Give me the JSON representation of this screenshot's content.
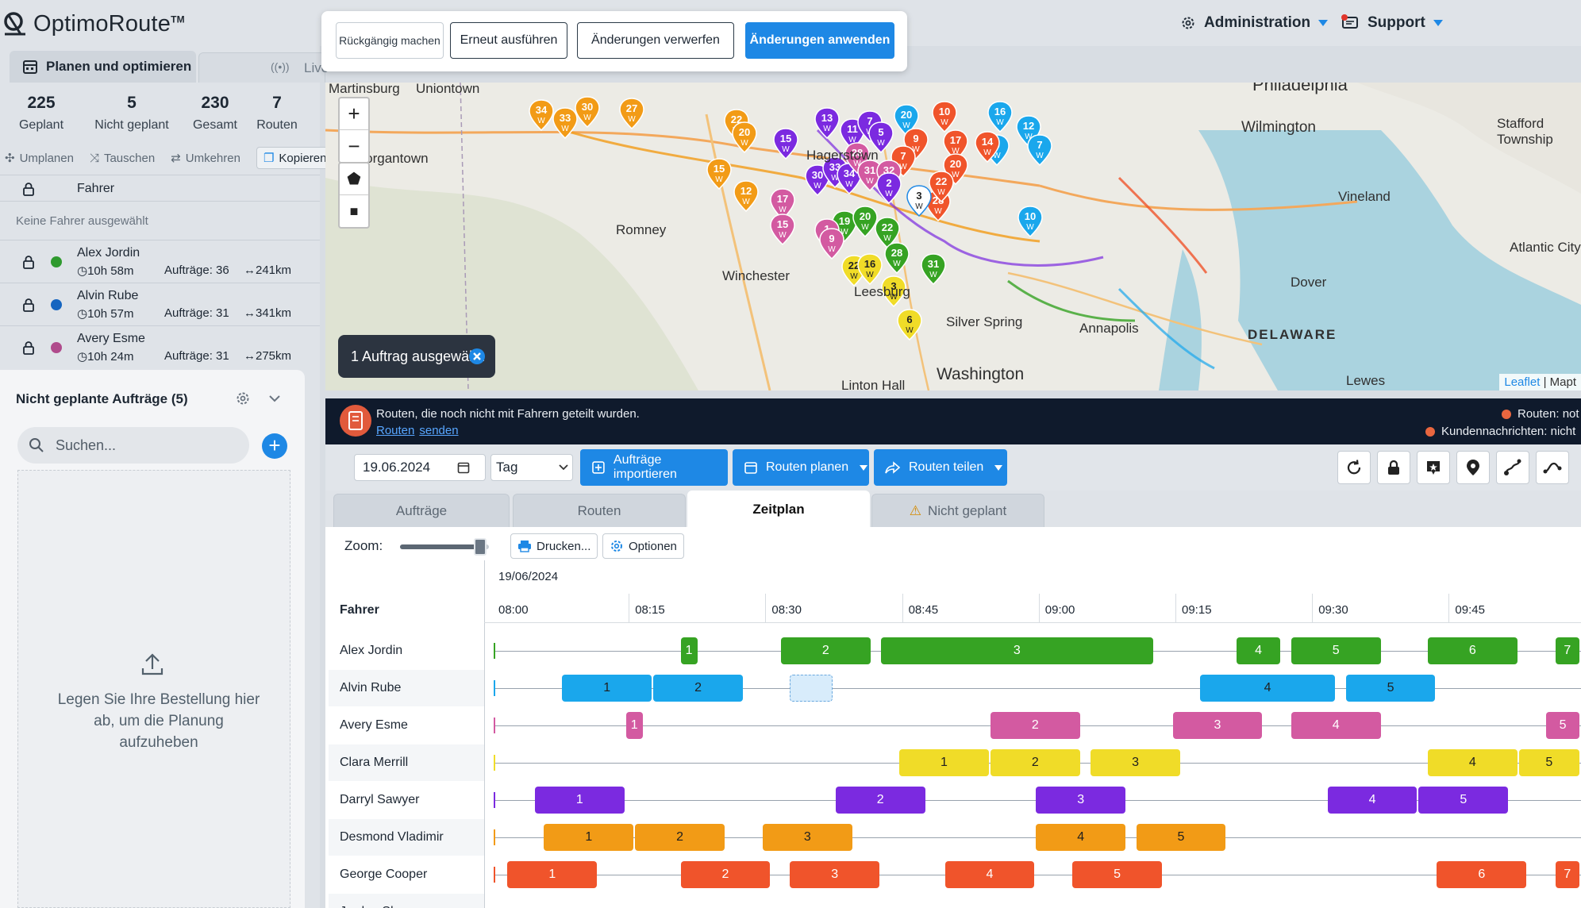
{
  "brand": {
    "name": "OptimoRoute",
    "tm": "TM"
  },
  "nav": {
    "tab_plan": "Planen und optimieren",
    "tab_live": "Live"
  },
  "stats": [
    {
      "num": "225",
      "label": "Geplant"
    },
    {
      "num": "5",
      "label": "Nicht geplant"
    },
    {
      "num": "230",
      "label": "Gesamt"
    },
    {
      "num": "7",
      "label": "Routen"
    }
  ],
  "actions": {
    "replan": "Umplanen",
    "swap": "Tauschen",
    "reverse": "Umkehren",
    "copy": "Kopieren"
  },
  "drivers_panel": {
    "header": "Fahrer",
    "empty": "Keine Fahrer ausgewählt"
  },
  "drivers": [
    {
      "name": "Alex Jordin",
      "time": "10h 58m",
      "orders": "Aufträge: 36",
      "dist": "241km",
      "color": "#2f9a2f"
    },
    {
      "name": "Alvin Rube",
      "time": "10h 57m",
      "orders": "Aufträge: 31",
      "dist": "341km",
      "color": "#1565c0"
    },
    {
      "name": "Avery Esme",
      "time": "10h 24m",
      "orders": "Aufträge: 31",
      "dist": "275km",
      "color": "#b04b8c"
    }
  ],
  "unplanned": {
    "title": "Nicht geplante Aufträge (5)",
    "search_placeholder": "Suchen...",
    "drop_text": "Legen Sie Ihre Bestellung hier ab, um die Planung aufzuheben"
  },
  "topnav": {
    "admin": "Administration",
    "support": "Support"
  },
  "popup": {
    "undo": "Rückgängig machen",
    "redo": "Erneut ausführen",
    "discard": "Änderungen verwerfen",
    "apply": "Änderungen anwenden"
  },
  "map": {
    "selected": "1 Auftrag ausgewählt",
    "attribution_leaflet": "Leaflet",
    "attribution_rest": " | Mapt",
    "labels": [
      "Martinsburg",
      "Uniontown",
      "Philadelphia",
      "Wilmington",
      "Stafford Township",
      "Morgantown",
      "Hagerstown",
      "Vineland",
      "Romney",
      "Winchester",
      "Atlantic City",
      "Dover",
      "Leesburg",
      "DELAWARE",
      "Silver Spring",
      "Annapolis",
      "Washington",
      "Linton Hall",
      "Lewes"
    ]
  },
  "notification": {
    "text": "Routen, die noch nicht mit Fahrern geteilt wurden.",
    "link1": "Routen",
    "link2": "senden",
    "right1": "Routen: not",
    "right2": "Kundennachrichten: nicht"
  },
  "toolbar": {
    "date": "19.06.2024",
    "view": "Tag",
    "import": "Aufträge importieren",
    "plan": "Routen planen",
    "share": "Routen teilen"
  },
  "tabs": {
    "orders": "Aufträge",
    "routes": "Routen",
    "schedule": "Zeitplan",
    "unplanned": "Nicht geplant"
  },
  "schedule": {
    "zoom_label": "Zoom:",
    "zoom_value": 0.9,
    "print": "Drucken...",
    "options": "Optionen",
    "date": "19/06/2024",
    "driver_col": "Fahrer",
    "ticks": [
      "08:00",
      "08:15",
      "08:30",
      "08:45",
      "09:00",
      "09:15",
      "09:30",
      "09:45"
    ],
    "rows": [
      {
        "name": "Alex Jordin",
        "color": "#36a323",
        "light": true
      },
      {
        "name": "Alvin Rube",
        "color": "#1aa7ec",
        "light": false
      },
      {
        "name": "Avery Esme",
        "color": "#d35aa1",
        "light": true
      },
      {
        "name": "Clara Merrill",
        "color": "#f0dc28",
        "light": false
      },
      {
        "name": "Darryl Sawyer",
        "color": "#7b2ae0",
        "light": true
      },
      {
        "name": "Desmond Vladimir",
        "color": "#f29b16",
        "light": false
      },
      {
        "name": "George Cooper",
        "color": "#f0542b",
        "light": true
      },
      {
        "name": "Jordan Shaw",
        "color": "#2c7be5",
        "light": true
      }
    ],
    "blocks": [
      [
        [
          "1",
          "08:20",
          "08:22"
        ],
        [
          "2",
          "08:31",
          "08:41"
        ],
        [
          "3",
          "08:42",
          "09:12"
        ],
        [
          "4",
          "09:21",
          "09:26"
        ],
        [
          "5",
          "09:27",
          "09:37"
        ],
        [
          "6",
          "09:42",
          "09:52"
        ],
        [
          "7",
          "09:56",
          "10:06"
        ]
      ],
      [
        [
          "1",
          "08:07",
          "08:17"
        ],
        [
          "2",
          "08:17",
          "08:27"
        ],
        [
          "4",
          "09:17",
          "09:32"
        ],
        [
          "5",
          "09:33",
          "09:43"
        ]
      ],
      [
        [
          "1",
          "08:14",
          "08:16"
        ],
        [
          "2",
          "08:54",
          "09:04"
        ],
        [
          "3",
          "09:14",
          "09:24"
        ],
        [
          "4",
          "09:27",
          "09:37"
        ],
        [
          "5",
          "09:55",
          "10:05"
        ]
      ],
      [
        [
          "1",
          "08:44",
          "08:54"
        ],
        [
          "2",
          "08:54",
          "09:04"
        ],
        [
          "3",
          "09:05",
          "09:15"
        ],
        [
          "4",
          "09:42",
          "09:52"
        ],
        [
          "5",
          "09:52",
          "10:02"
        ]
      ],
      [
        [
          "1",
          "08:04",
          "08:14"
        ],
        [
          "2",
          "08:37",
          "08:47"
        ],
        [
          "3",
          "08:59",
          "09:09"
        ],
        [
          "4",
          "09:31",
          "09:41"
        ],
        [
          "5",
          "09:41",
          "09:51"
        ]
      ],
      [
        [
          "1",
          "08:05",
          "08:15"
        ],
        [
          "2",
          "08:15",
          "08:25"
        ],
        [
          "3",
          "08:29",
          "08:39"
        ],
        [
          "4",
          "08:59",
          "09:09"
        ],
        [
          "5",
          "09:10",
          "09:20"
        ]
      ],
      [
        [
          "1",
          "08:01",
          "08:11"
        ],
        [
          "2",
          "08:20",
          "08:30"
        ],
        [
          "3",
          "08:32",
          "08:42"
        ],
        [
          "4",
          "08:49",
          "08:59"
        ],
        [
          "5",
          "09:03",
          "09:13"
        ],
        [
          "6",
          "09:43",
          "09:53"
        ],
        [
          "7",
          "09:56",
          "10:06"
        ]
      ],
      []
    ]
  },
  "map_pins": [
    {
      "n": "34",
      "c": "#f29b16"
    },
    {
      "n": "33",
      "c": "#f29b16"
    },
    {
      "n": "30",
      "c": "#f29b16"
    },
    {
      "n": "27",
      "c": "#f29b16"
    },
    {
      "n": "22",
      "c": "#f29b16"
    },
    {
      "n": "20",
      "c": "#f29b16"
    },
    {
      "n": "15",
      "c": "#f29b16"
    },
    {
      "n": "12",
      "c": "#f29b16"
    },
    {
      "n": "13",
      "c": "#7b2ae0"
    },
    {
      "n": "11",
      "c": "#7b2ae0"
    },
    {
      "n": "7",
      "c": "#7b2ae0"
    },
    {
      "n": "5",
      "c": "#7b2ae0"
    },
    {
      "n": "15",
      "c": "#7b2ae0"
    },
    {
      "n": "30",
      "c": "#7b2ae0"
    },
    {
      "n": "33",
      "c": "#7b2ae0"
    },
    {
      "n": "34",
      "c": "#7b2ae0"
    },
    {
      "n": "20",
      "c": "#1aa7ec"
    },
    {
      "n": "16",
      "c": "#1aa7ec"
    },
    {
      "n": "12",
      "c": "#1aa7ec"
    },
    {
      "n": "7",
      "c": "#1aa7ec"
    },
    {
      "n": "5",
      "c": "#1aa7ec"
    },
    {
      "n": "10",
      "c": "#1aa7ec"
    },
    {
      "n": "10",
      "c": "#f0542b"
    },
    {
      "n": "17",
      "c": "#f0542b"
    },
    {
      "n": "9",
      "c": "#f0542b"
    },
    {
      "n": "7",
      "c": "#f0542b"
    },
    {
      "n": "20",
      "c": "#f0542b"
    },
    {
      "n": "28",
      "c": "#f0542b"
    },
    {
      "n": "22",
      "c": "#f0542b"
    },
    {
      "n": "14",
      "c": "#f0542b"
    },
    {
      "n": "28",
      "c": "#d35aa1"
    },
    {
      "n": "31",
      "c": "#d35aa1"
    },
    {
      "n": "32",
      "c": "#d35aa1"
    },
    {
      "n": "17",
      "c": "#d35aa1"
    },
    {
      "n": "15",
      "c": "#d35aa1"
    },
    {
      "n": "19",
      "c": "#36a323"
    },
    {
      "n": "20",
      "c": "#36a323"
    },
    {
      "n": "22",
      "c": "#36a323"
    },
    {
      "n": "28",
      "c": "#36a323"
    },
    {
      "n": "31",
      "c": "#36a323"
    },
    {
      "n": "1",
      "c": "#d35aa1"
    },
    {
      "n": "3",
      "c": "#ffffff"
    },
    {
      "n": "22",
      "c": "#f0dc28"
    },
    {
      "n": "16",
      "c": "#f0dc28"
    },
    {
      "n": "3",
      "c": "#f0dc28"
    },
    {
      "n": "6",
      "c": "#f0dc28"
    },
    {
      "n": "2",
      "c": "#7b2ae0"
    },
    {
      "n": "9",
      "c": "#d35aa1"
    }
  ]
}
